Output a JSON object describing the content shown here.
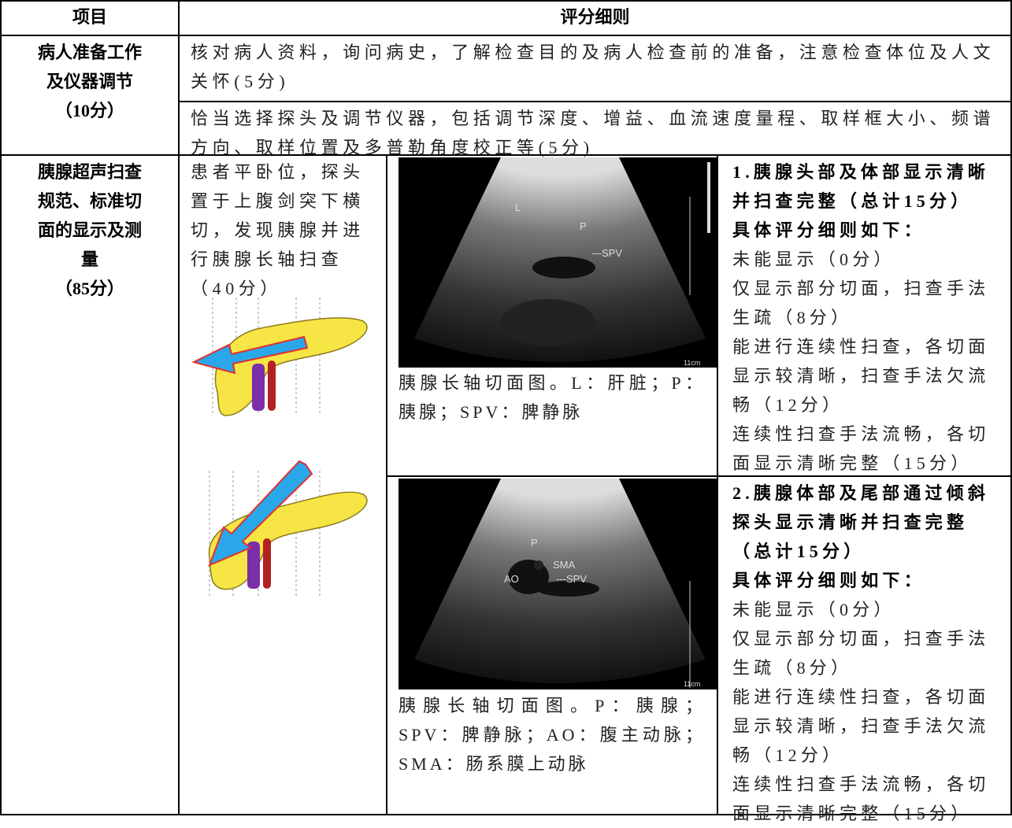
{
  "table": {
    "header": [
      "项目",
      "评分细则"
    ],
    "rows": [
      {
        "item": [
          "病人准备工作",
          "及仪器调节",
          "（10分）"
        ],
        "details": [
          "核对病人资料，询问病史，了解检查目的及病人检查前的准备，注意检查体位及人文关怀(5分)",
          "恰当选择探头及调节仪器，包括调节深度、增益、血流速度量程、取样框大小、频谱方向、取样位置及多普勒角度校正等(5分)"
        ]
      },
      {
        "item": [
          "胰腺超声扫查",
          "规范、标准切",
          "面的显示及测",
          "量",
          "（85分）"
        ],
        "method": "患者平卧位，探头置于上腹剑突下横切，发现胰腺并进行胰腺长轴扫查（40分）",
        "views": [
          {
            "image_labels": [
              "L",
              "P",
              "---SPV",
              "11cm"
            ],
            "caption": "胰腺长轴切面图。L：肝脏；P：胰腺；SPV：脾静脉",
            "criteria_title": "1.胰腺头部及体部显示清晰并扫查完整（总计15分）",
            "criteria_subtitle": "具体评分细则如下：",
            "criteria": [
              "未能显示（0分）",
              "仅显示部分切面，扫查手法生疏（8分）",
              "能进行连续性扫查，各切面显示较清晰，扫查手法欠流畅（12分）",
              "连续性扫查手法流畅，各切面显示清晰完整（15分）"
            ]
          },
          {
            "image_labels": [
              "P",
              "SMA",
              "AO",
              "---SPV",
              "11cm"
            ],
            "caption": "胰腺长轴切面图。P：胰腺；SPV：脾静脉；AO：腹主动脉；SMA：肠系膜上动脉",
            "criteria_title": "2.胰腺体部及尾部通过倾斜探头显示清晰并扫查完整（总计15分）",
            "criteria_subtitle": "具体评分细则如下：",
            "criteria": [
              "未能显示（0分）",
              "仅显示部分切面，扫查手法生疏（8分）",
              "能进行连续性扫查，各切面显示较清晰，扫查手法欠流畅（12分）",
              "连续性扫查手法流畅，各切面显示清晰完整（15分）"
            ]
          }
        ]
      }
    ]
  }
}
